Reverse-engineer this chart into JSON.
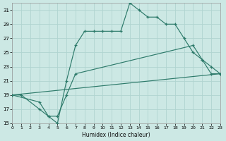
{
  "xlabel": "Humidex (Indice chaleur)",
  "bg_color": "#cce8e4",
  "grid_color": "#b0d4d0",
  "line_color": "#2d7a6a",
  "xlim": [
    0,
    23
  ],
  "ylim": [
    15,
    32
  ],
  "xticks": [
    0,
    1,
    2,
    3,
    4,
    5,
    6,
    7,
    8,
    9,
    10,
    11,
    12,
    13,
    14,
    15,
    16,
    17,
    18,
    19,
    20,
    21,
    22,
    23
  ],
  "yticks": [
    15,
    17,
    19,
    21,
    23,
    25,
    27,
    29,
    31
  ],
  "line1_x": [
    0,
    1,
    3,
    4,
    5,
    6,
    7,
    8,
    9,
    10,
    11,
    12,
    13,
    14,
    15,
    16,
    17,
    18,
    19,
    20,
    21,
    22,
    23
  ],
  "line1_y": [
    19,
    19,
    17,
    16,
    15,
    21,
    26,
    28,
    28,
    28,
    28,
    28,
    32,
    31,
    30,
    30,
    29,
    29,
    27,
    25,
    24,
    22,
    22
  ],
  "line2_x": [
    0,
    3,
    4,
    5,
    6,
    7,
    20,
    21,
    22,
    23
  ],
  "line2_y": [
    19,
    18,
    16,
    16,
    19,
    22,
    26,
    24,
    23,
    22
  ],
  "line3_x": [
    0,
    23
  ],
  "line3_y": [
    19,
    22
  ]
}
